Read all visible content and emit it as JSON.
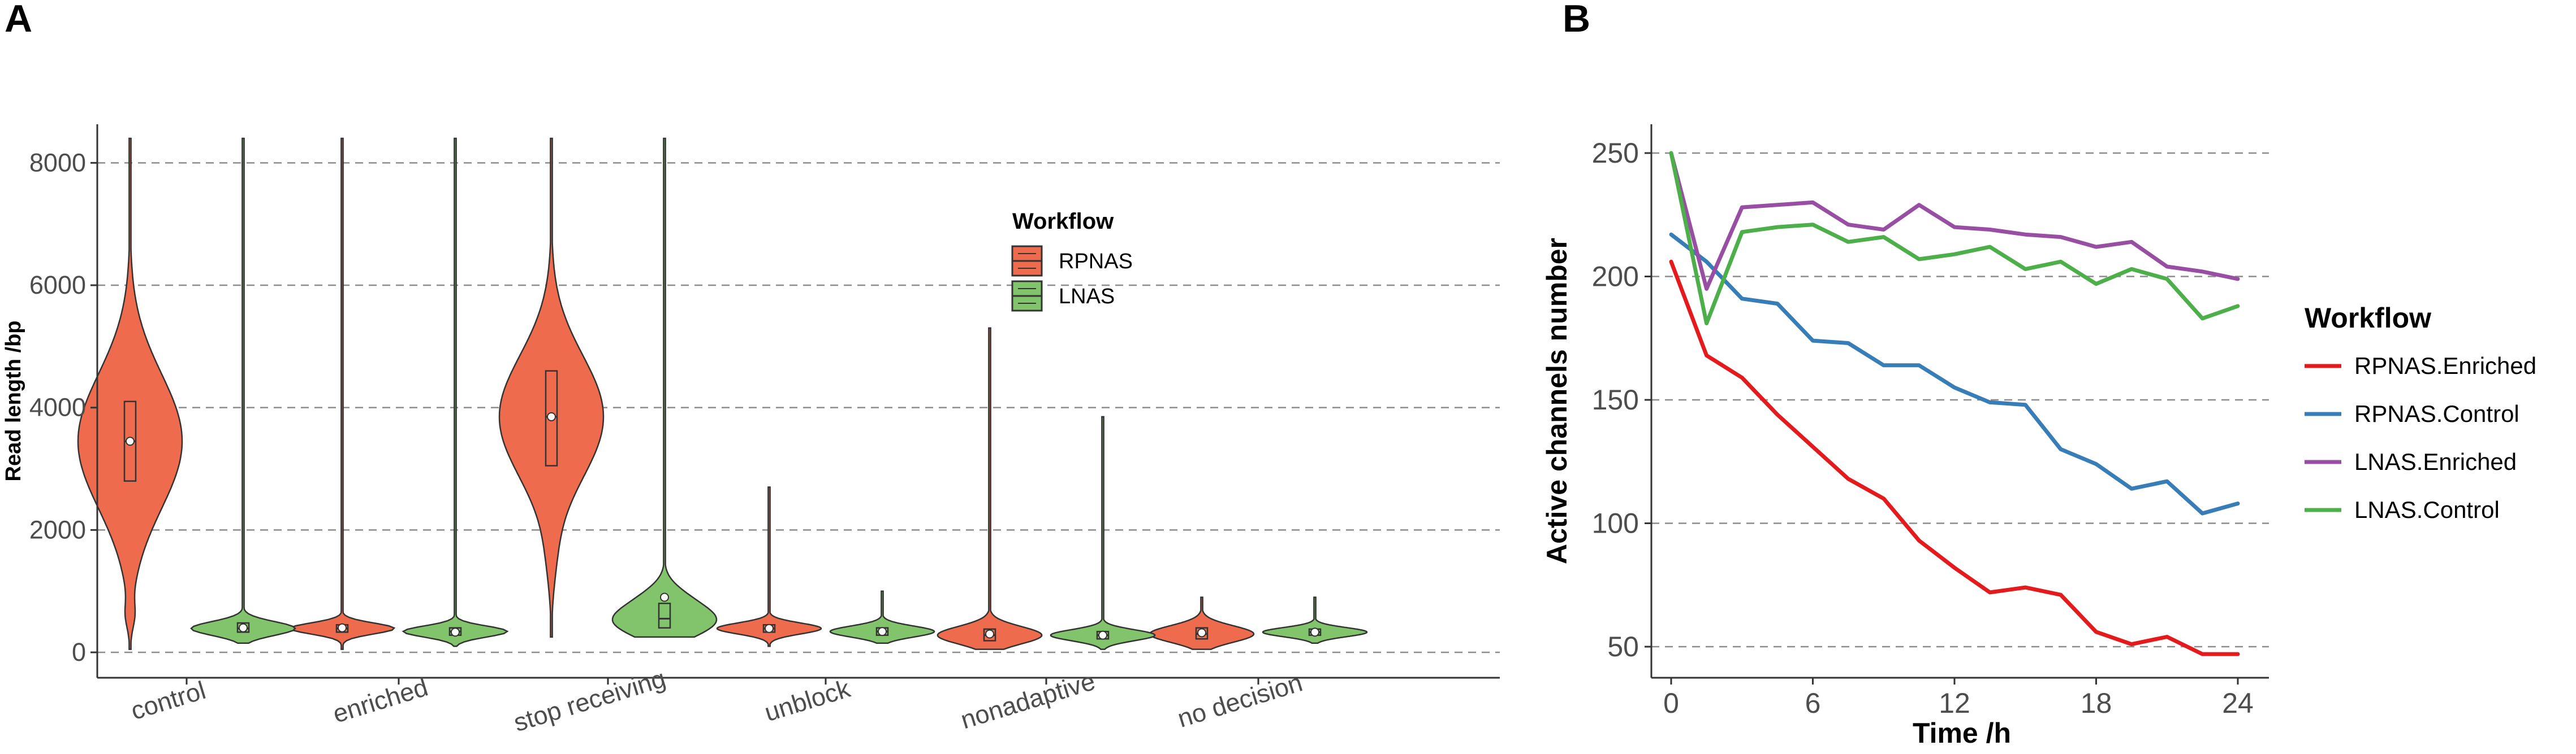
{
  "chart_data": [
    {
      "panel": "A",
      "type": "violin",
      "title": "",
      "xlabel": "",
      "ylabel": "Read length /bp",
      "ylim": [
        0,
        8400
      ],
      "yticks": [
        "0",
        "2000",
        "4000",
        "6000",
        "8000"
      ],
      "grid": "horizontal dashed",
      "categories": [
        "control",
        "enriched",
        "stop receiving",
        "unblock",
        "nonadaptive",
        "no decision"
      ],
      "legend": {
        "title": "Workflow",
        "position": "inside-top-right",
        "entries": [
          {
            "name": "RPNAS",
            "color": "#ee6c4d"
          },
          {
            "name": "LNAS",
            "color": "#82c46b"
          }
        ]
      },
      "series": [
        {
          "name": "RPNAS",
          "color": "#ee6c4d",
          "groups": [
            {
              "category": "control",
              "min": 50,
              "max": 8400,
              "q1": 2800,
              "median": 3450,
              "q3": 4100,
              "mean": 3450
            },
            {
              "category": "enriched",
              "min": 50,
              "max": 8400,
              "q1": 330,
              "median": 390,
              "q3": 450,
              "mean": 400
            },
            {
              "category": "stop receiving",
              "min": 250,
              "max": 8400,
              "q1": 3050,
              "median": 3850,
              "q3": 4600,
              "mean": 3850
            },
            {
              "category": "unblock",
              "min": 100,
              "max": 2700,
              "q1": 330,
              "median": 390,
              "q3": 450,
              "mean": 390
            },
            {
              "category": "nonadaptive",
              "min": 50,
              "max": 5300,
              "q1": 190,
              "median": 280,
              "q3": 380,
              "mean": 300
            },
            {
              "category": "no decision",
              "min": 50,
              "max": 900,
              "q1": 220,
              "median": 300,
              "q3": 400,
              "mean": 320
            }
          ]
        },
        {
          "name": "LNAS",
          "color": "#82c46b",
          "groups": [
            {
              "category": "control",
              "min": 150,
              "max": 8400,
              "q1": 330,
              "median": 390,
              "q3": 480,
              "mean": 400
            },
            {
              "category": "enriched",
              "min": 100,
              "max": 8400,
              "q1": 280,
              "median": 340,
              "q3": 400,
              "mean": 330
            },
            {
              "category": "stop receiving",
              "min": 250,
              "max": 8400,
              "q1": 400,
              "median": 550,
              "q3": 800,
              "mean": 900
            },
            {
              "category": "unblock",
              "min": 150,
              "max": 1000,
              "q1": 280,
              "median": 340,
              "q3": 400,
              "mean": 340
            },
            {
              "category": "nonadaptive",
              "min": 50,
              "max": 3850,
              "q1": 220,
              "median": 280,
              "q3": 340,
              "mean": 280
            },
            {
              "category": "no decision",
              "min": 150,
              "max": 900,
              "q1": 280,
              "median": 330,
              "q3": 380,
              "mean": 330
            }
          ]
        }
      ]
    },
    {
      "panel": "B",
      "type": "line",
      "title": "",
      "xlabel": "Time /h",
      "ylabel": "Active channels number",
      "xlim": [
        0,
        24
      ],
      "ylim": [
        40,
        262
      ],
      "xticks": [
        "0",
        "6",
        "12",
        "18",
        "24"
      ],
      "yticks": [
        "50",
        "100",
        "150",
        "200",
        "250"
      ],
      "grid": "horizontal dashed",
      "legend": {
        "title": "Workflow",
        "position": "right"
      },
      "x": [
        0,
        1.5,
        3,
        4.5,
        6,
        7.5,
        9,
        10.5,
        12,
        13.5,
        15,
        16.5,
        18,
        19.5,
        21,
        22.5,
        24
      ],
      "series": [
        {
          "name": "RPNAS.Enriched",
          "color": "#e41a1c",
          "values": [
            206,
            168,
            159,
            144,
            131,
            118,
            110,
            93,
            82,
            72,
            74,
            71,
            56,
            51,
            54,
            47,
            47
          ]
        },
        {
          "name": "RPNAS.Control",
          "color": "#377eb8",
          "values": [
            217,
            206,
            191,
            189,
            174,
            173,
            164,
            164,
            155,
            149,
            148,
            130,
            124,
            114,
            117,
            104,
            108
          ]
        },
        {
          "name": "LNAS.Enriched",
          "color": "#984ea3",
          "values": [
            250,
            195,
            228,
            229,
            230,
            221,
            219,
            229,
            220,
            219,
            217,
            216,
            212,
            214,
            204,
            202,
            199
          ]
        },
        {
          "name": "LNAS.Control",
          "color": "#4daf4a",
          "values": [
            250,
            181,
            218,
            220,
            221,
            214,
            216,
            207,
            209,
            212,
            203,
            206,
            197,
            203,
            199,
            183,
            188
          ]
        }
      ]
    }
  ]
}
